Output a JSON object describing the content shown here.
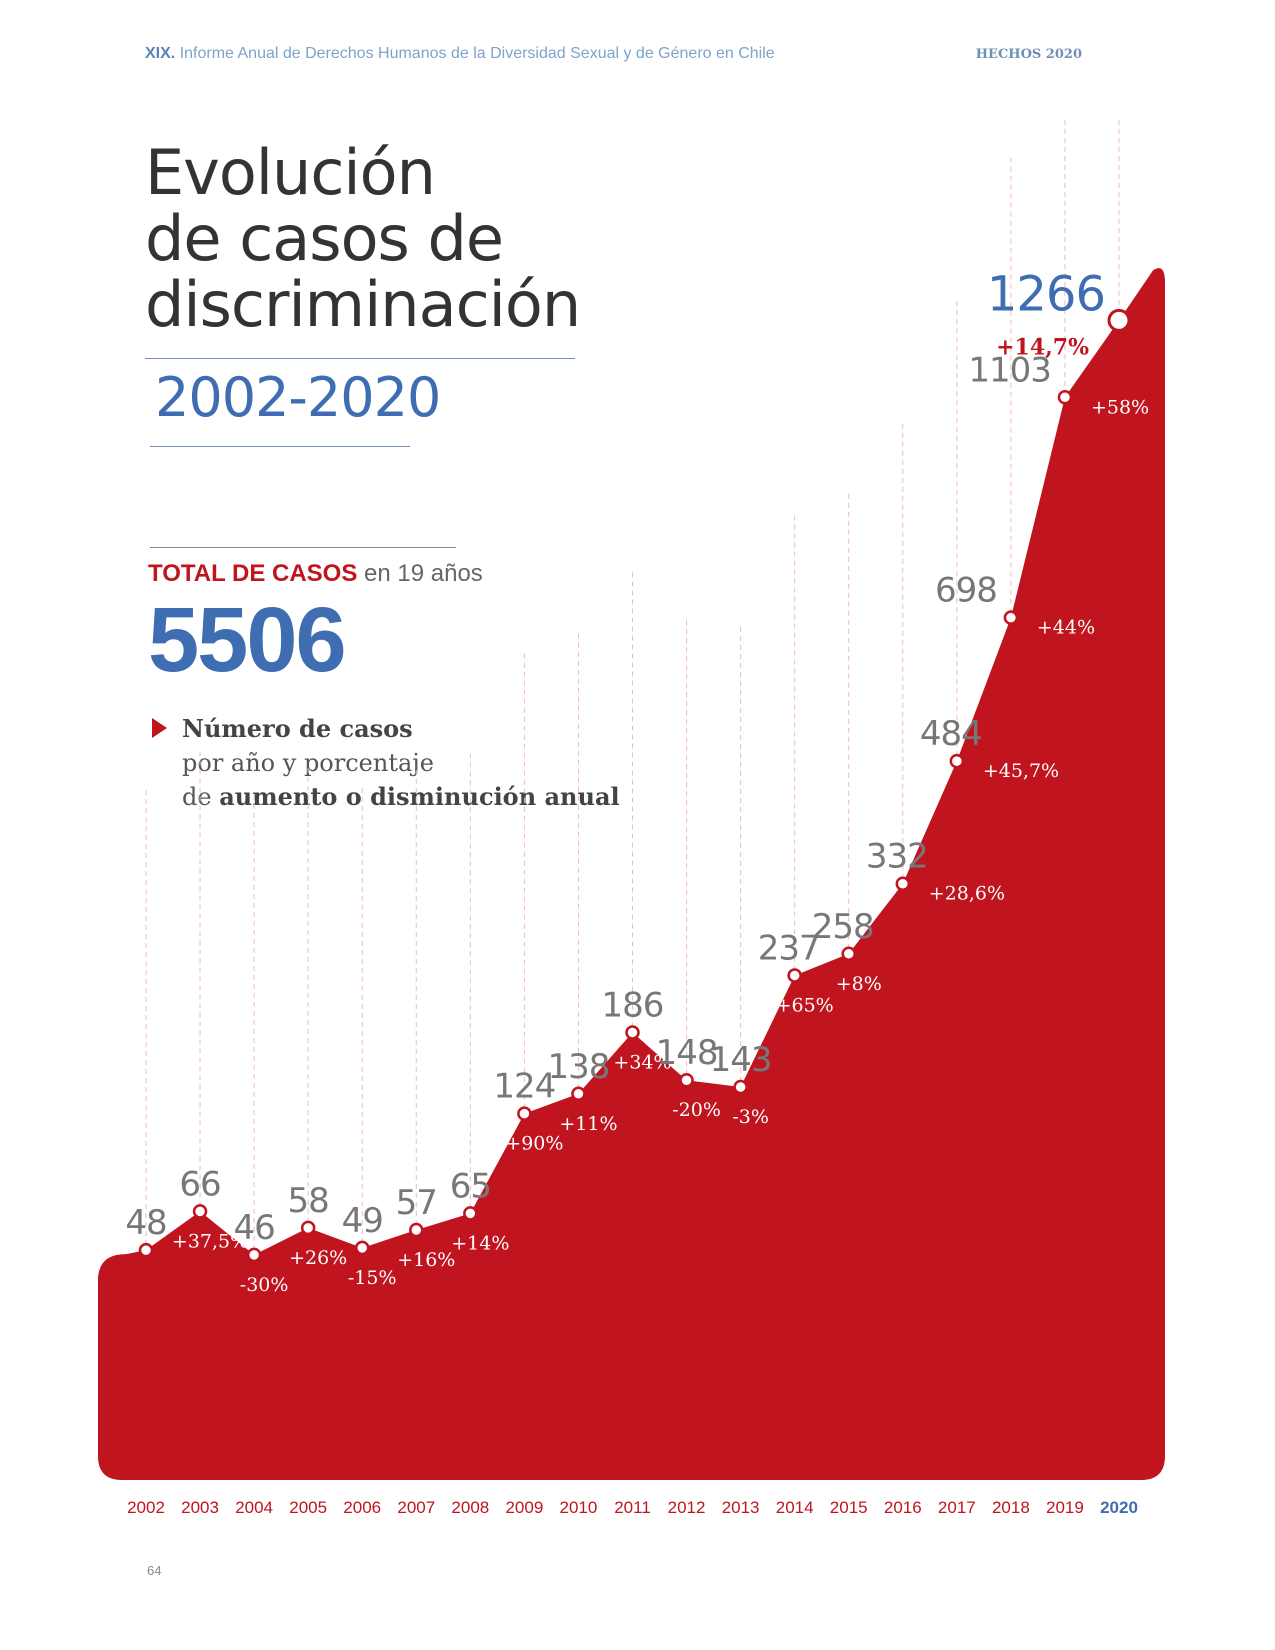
{
  "header": {
    "report_number": "XIX.",
    "report_title": "Informe Anual de Derechos Humanos de la Diversidad Sexual y de Género en Chile",
    "section": "HECHOS 2020"
  },
  "title": {
    "line1": "Evolución",
    "line2": "de casos de",
    "line3": "discriminación",
    "period": "2002-2020"
  },
  "total": {
    "label_strong": "TOTAL DE CASOS",
    "label_rest": " en 19 años",
    "value": "5506"
  },
  "legend": {
    "line1": "Número de casos",
    "line2": "por año y porcentaje",
    "line3_prefix": "de ",
    "line3_strong": "aumento o disminución anual"
  },
  "chart_data": {
    "type": "area",
    "x": [
      "2002",
      "2003",
      "2004",
      "2005",
      "2006",
      "2007",
      "2008",
      "2009",
      "2010",
      "2011",
      "2012",
      "2013",
      "2014",
      "2015",
      "2016",
      "2017",
      "2018",
      "2019",
      "2020"
    ],
    "values": [
      48,
      66,
      46,
      58,
      49,
      57,
      65,
      124,
      138,
      186,
      148,
      143,
      237,
      258,
      332,
      484,
      698,
      1103,
      1266
    ],
    "value_labels": [
      "48",
      "66",
      "46",
      "58",
      "49",
      "57",
      "65",
      "124",
      "138",
      "186",
      "148",
      "143",
      "237",
      "258",
      "332",
      "484",
      "698",
      "1103",
      "1266"
    ],
    "change_labels": [
      "",
      "+37,5%",
      "-30%",
      "+26%",
      "-15%",
      "+16%",
      "+14%",
      "+90%",
      "+11%",
      "+34%",
      "-20%",
      "-3%",
      "+65%",
      "+8%",
      "+28,6%",
      "+45,7%",
      "+44%",
      "+58%",
      "+14,7%"
    ],
    "highlight": "2020",
    "colors": {
      "area": "#c0141f",
      "highlight": "#3f6db1",
      "value_text": "#777777",
      "year_text": "#c0141f",
      "gridline": "#f2b8bd"
    },
    "title": "",
    "xlabel": "",
    "ylabel": "",
    "grid": true
  },
  "footer": {
    "page_number": "64"
  }
}
